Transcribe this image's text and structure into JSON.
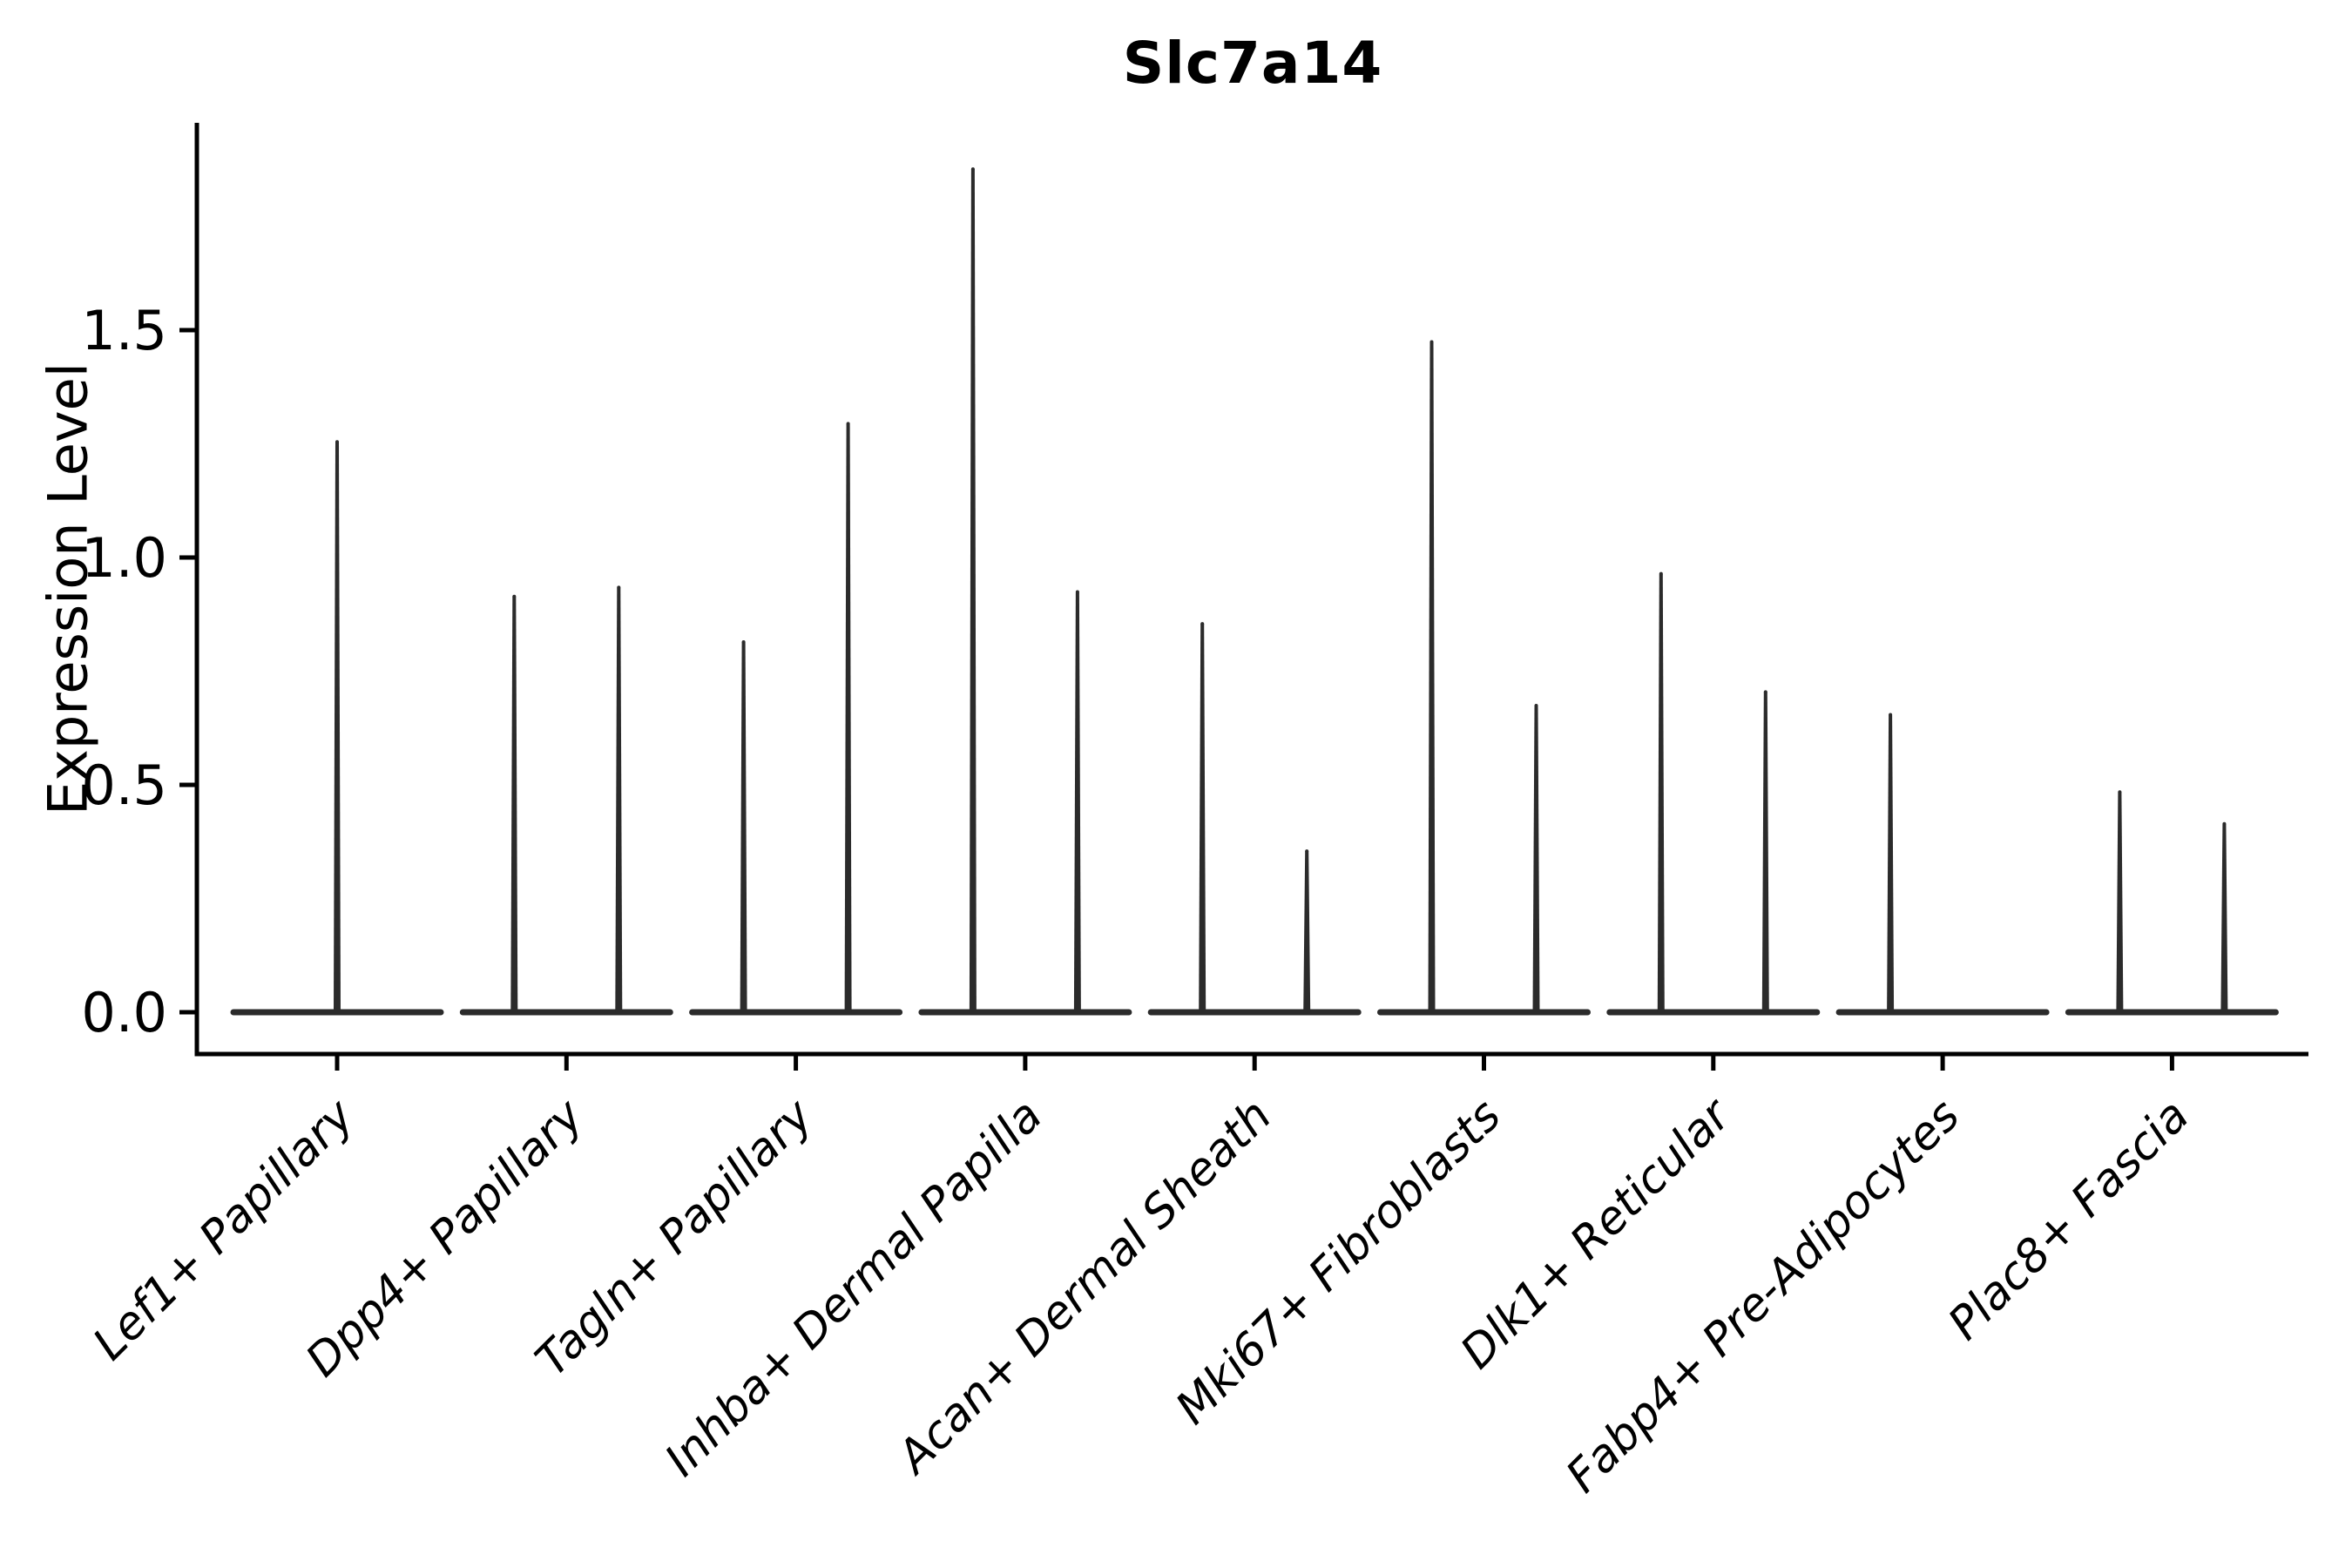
{
  "title": "Slc7a14",
  "chart_data": {
    "type": "violin",
    "title": "Slc7a14",
    "xlabel": "",
    "ylabel": "Expression Level",
    "ylim": [
      -0.09,
      1.96
    ],
    "yticks": [
      0.0,
      0.5,
      1.0,
      1.5
    ],
    "ytick_labels": [
      "0.0",
      "0.5",
      "1.0",
      "1.5"
    ],
    "grid": false,
    "legend": "none",
    "colors": {
      "violin": "#2b2b2b",
      "axis": "#000000",
      "text": "#000000",
      "background": "#ffffff"
    },
    "categories": [
      "Lef1+ Papillary",
      "Dpp4+ Papillary",
      "Tagln+ Papillary",
      "Inhba+ Dermal Papilla",
      "Acan+ Dermal Sheath",
      "Mki67+ Fibroblasts",
      "Dlk1+ Reticular",
      "Fabp4+ Pre-Adipocytes",
      "Plac8+ Fascia"
    ],
    "violins": [
      {
        "category": "Lef1+ Papillary",
        "spikes": [
          {
            "position": "center",
            "max": 1.26
          }
        ]
      },
      {
        "category": "Dpp4+ Papillary",
        "spikes": [
          {
            "position": "left",
            "max": 0.92
          },
          {
            "position": "right",
            "max": 0.94
          }
        ]
      },
      {
        "category": "Tagln+ Papillary",
        "spikes": [
          {
            "position": "left",
            "max": 0.82
          },
          {
            "position": "right",
            "max": 1.3
          }
        ]
      },
      {
        "category": "Inhba+ Dermal Papilla",
        "spikes": [
          {
            "position": "left",
            "max": 1.86
          },
          {
            "position": "right",
            "max": 0.93
          }
        ]
      },
      {
        "category": "Acan+ Dermal Sheath",
        "spikes": [
          {
            "position": "left",
            "max": 0.86
          },
          {
            "position": "right",
            "max": 0.36
          }
        ]
      },
      {
        "category": "Mki67+ Fibroblasts",
        "spikes": [
          {
            "position": "left",
            "max": 1.48
          },
          {
            "position": "right",
            "max": 0.68
          }
        ]
      },
      {
        "category": "Dlk1+ Reticular",
        "spikes": [
          {
            "position": "left",
            "max": 0.97
          },
          {
            "position": "right",
            "max": 0.71
          }
        ]
      },
      {
        "category": "Fabp4+ Pre-Adipocytes",
        "spikes": [
          {
            "position": "left",
            "max": 0.66
          }
        ]
      },
      {
        "category": "Plac8+ Fascia",
        "spikes": [
          {
            "position": "left",
            "max": 0.49
          },
          {
            "position": "right",
            "max": 0.42
          }
        ]
      }
    ]
  }
}
